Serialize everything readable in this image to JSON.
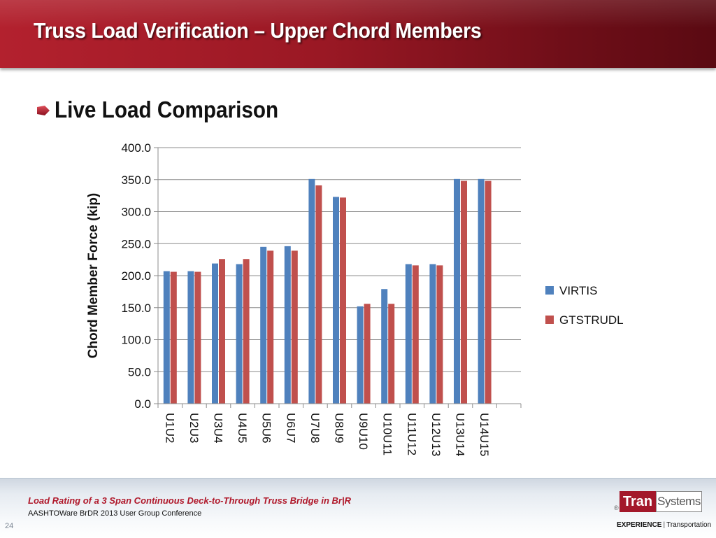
{
  "slide": {
    "title": "Truss Load Verification – Upper Chord Members",
    "bullet": "Live Load Comparison"
  },
  "chart_data": {
    "type": "bar",
    "ylabel": "Chord Member Force (kip)",
    "xlabel": "",
    "ylim": [
      0,
      400
    ],
    "yticks": [
      "0.0",
      "50.0",
      "100.0",
      "150.0",
      "200.0",
      "250.0",
      "300.0",
      "350.0",
      "400.0"
    ],
    "grid": true,
    "legend_position": "right",
    "categories": [
      "U1U2",
      "U2U3",
      "U3U4",
      "U4U5",
      "U5U6",
      "U6U7",
      "U7U8",
      "U8U9",
      "U9U10",
      "U10U11",
      "U11U12",
      "U12U13",
      "U13U14",
      "U14U15"
    ],
    "series": [
      {
        "name": "VIRTIS",
        "color": "#4f81bd",
        "values": [
          207,
          207,
          219,
          218,
          245,
          246,
          351,
          323,
          152,
          179,
          218,
          218,
          351,
          351
        ]
      },
      {
        "name": "GTSTRUDL",
        "color": "#c0504d",
        "values": [
          206,
          206,
          226,
          226,
          239,
          239,
          341,
          322,
          156,
          156,
          216,
          216,
          348,
          348
        ]
      }
    ]
  },
  "footer": {
    "title": "Load Rating of a 3 Span Continuous Deck-to-Through Truss Bridge in Br|R",
    "subtitle": "AASHTOWare BrDR 2013 User Group Conference",
    "page_number": "24"
  },
  "logo": {
    "tran": "Tran",
    "systems": "Systems",
    "mark": "®"
  },
  "tagline": {
    "strong": "EXPERIENCE",
    "separator": "|",
    "rest": "Transportation"
  }
}
